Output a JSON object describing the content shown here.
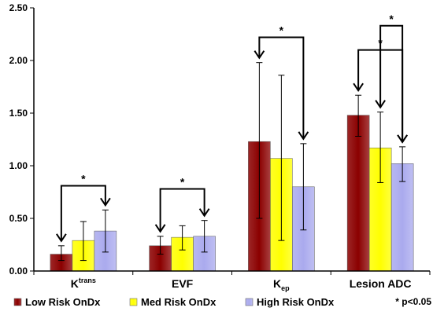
{
  "chart_data": {
    "type": "bar",
    "categories": [
      {
        "main": "K",
        "sup": "trans",
        "sub": ""
      },
      {
        "main": "EVF",
        "sup": "",
        "sub": ""
      },
      {
        "main": "K",
        "sup": "",
        "sub": "ep"
      },
      {
        "main": "Lesion ADC",
        "sup": "",
        "sub": ""
      }
    ],
    "series": [
      {
        "name": "Low Risk OnDx",
        "color": "#8B0000",
        "values": [
          0.16,
          0.24,
          1.23,
          1.48
        ],
        "err_low": [
          0.1,
          0.16,
          0.5,
          1.28
        ],
        "err_high": [
          0.24,
          0.33,
          1.98,
          1.67
        ]
      },
      {
        "name": "Med Risk OnDx",
        "color": "#FFFF00",
        "values": [
          0.29,
          0.32,
          1.07,
          1.17
        ],
        "err_low": [
          0.1,
          0.2,
          0.29,
          0.84
        ],
        "err_high": [
          0.47,
          0.43,
          1.86,
          1.51
        ]
      },
      {
        "name": "High Risk OnDx",
        "color": "#AAAAEE",
        "values": [
          0.38,
          0.33,
          0.8,
          1.02
        ],
        "err_low": [
          0.18,
          0.18,
          0.39,
          0.85
        ],
        "err_high": [
          0.58,
          0.48,
          1.21,
          1.18
        ]
      }
    ],
    "yticks": [
      "0.00",
      "0.50",
      "1.00",
      "1.50",
      "2.00",
      "2.50"
    ],
    "ylim": [
      0,
      2.5
    ],
    "annotations": [
      {
        "category": 0,
        "from_series": 0,
        "to_series": 2,
        "level": 0.81,
        "label": "*"
      },
      {
        "category": 1,
        "from_series": 0,
        "to_series": 2,
        "level": 0.78,
        "label": "*"
      },
      {
        "category": 2,
        "from_series": 0,
        "to_series": 2,
        "level": 2.22,
        "label": "*"
      },
      {
        "category": 3,
        "from_series": 0,
        "to_series": 2,
        "level": 2.1,
        "label": "*"
      },
      {
        "category": 3,
        "from_series": 1,
        "to_series": 2,
        "level": 2.33,
        "label": "*"
      }
    ],
    "note": "* p<0.05",
    "legend_position": "bottom"
  }
}
